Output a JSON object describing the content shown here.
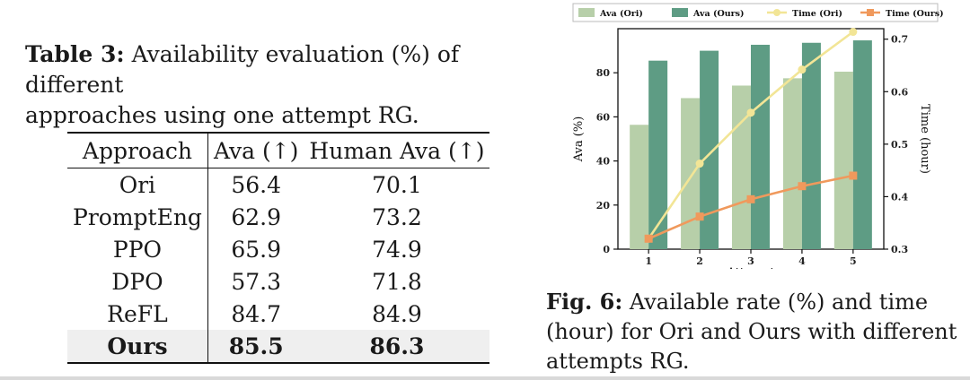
{
  "table_caption": {
    "label": "Table 3:",
    "text_line1": "Availability evaluation (%) of different",
    "text_line2": "approaches using one attempt RG."
  },
  "table": {
    "headers": [
      "Approach",
      "Ava (↑)",
      "Human Ava (↑)"
    ],
    "rows": [
      {
        "approach": "Ori",
        "ava": "56.4",
        "human": "70.1"
      },
      {
        "approach": "PromptEng",
        "ava": "62.9",
        "human": "73.2"
      },
      {
        "approach": "PPO",
        "ava": "65.9",
        "human": "74.9"
      },
      {
        "approach": "DPO",
        "ava": "57.3",
        "human": "71.8"
      },
      {
        "approach": "ReFL",
        "ava": "84.7",
        "human": "84.9"
      },
      {
        "approach": "Ours",
        "ava": "85.5",
        "human": "86.3"
      }
    ]
  },
  "figure_caption": {
    "label": "Fig. 6:",
    "text_line1": "Available rate (%) and time",
    "text_line2": "(hour) for Ori and Ours with different",
    "text_line3": "attempts RG."
  },
  "chart_data": {
    "type": "bar",
    "categories": [
      "1",
      "2",
      "3",
      "4",
      "5"
    ],
    "xlabel": "Attempt",
    "ylabel": "Ava (%)",
    "y2label": "Time (hour)",
    "ylim": [
      0,
      100
    ],
    "y2lim": [
      0.3,
      0.72
    ],
    "yticks": [
      0,
      20,
      40,
      60,
      80
    ],
    "y2ticks": [
      0.3,
      0.4,
      0.5,
      0.6,
      0.7
    ],
    "y2tick_labels": [
      "0.3",
      "0.4",
      "0.5",
      "0.6",
      "0.7"
    ],
    "legend_position": "top",
    "series": [
      {
        "name": "Ava (Ori)",
        "kind": "bar",
        "axis": "left",
        "color": "#b7cfa9",
        "values": [
          56.4,
          68.5,
          74.2,
          77.5,
          80.5
        ]
      },
      {
        "name": "Ava (Ours)",
        "kind": "bar",
        "axis": "left",
        "color": "#5e9c84",
        "values": [
          85.5,
          90.0,
          92.7,
          93.6,
          94.7
        ]
      },
      {
        "name": "Time (Ori)",
        "kind": "line",
        "axis": "right",
        "color": "#f2e596",
        "values": [
          0.32,
          0.463,
          0.56,
          0.642,
          0.714
        ]
      },
      {
        "name": "Time (Ours)",
        "kind": "line",
        "axis": "right",
        "color": "#f0995c",
        "values": [
          0.32,
          0.362,
          0.395,
          0.42,
          0.44
        ]
      }
    ]
  }
}
